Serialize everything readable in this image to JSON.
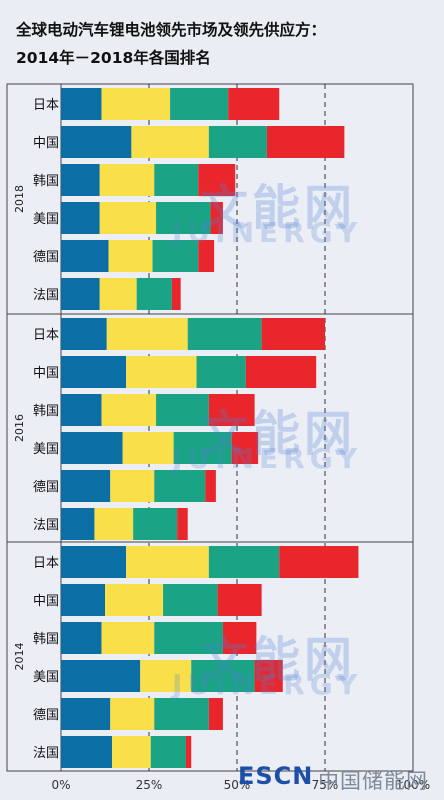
{
  "title_line1": "全球电动汽车锂电池领先市场及领先供应方：",
  "title_line2": "2014年－2018年各国排名",
  "watermark": {
    "text_cn": "文能网",
    "text_en": "JUINERGY"
  },
  "logo": {
    "esc": "ESCN",
    "cn": "中国储能网"
  },
  "colors": {
    "seg1": "#0b6fa6",
    "seg2": "#f9e04b",
    "seg3": "#1aa385",
    "seg4": "#e8262b"
  },
  "chart_data": {
    "type": "bar",
    "orientation": "horizontal",
    "stacked": true,
    "xlim": [
      0,
      100
    ],
    "x_ticks": [
      "0%",
      "25%",
      "50%",
      "75%",
      "100%"
    ],
    "groups": [
      {
        "label": "2018",
        "bars": [
          {
            "category": "日本",
            "values": [
              11.5,
              19.5,
              16.5,
              14.5
            ]
          },
          {
            "category": "中国",
            "values": [
              20,
              22,
              16.5,
              22
            ]
          },
          {
            "category": "韩国",
            "values": [
              11,
              15.5,
              12.5,
              10.5
            ]
          },
          {
            "category": "美国",
            "values": [
              11,
              16,
              15.5,
              3.5
            ]
          },
          {
            "category": "德国",
            "values": [
              13.5,
              12.5,
              13,
              4.5
            ]
          },
          {
            "category": "法国",
            "values": [
              11,
              10.5,
              10,
              2.5
            ]
          }
        ]
      },
      {
        "label": "2016",
        "bars": [
          {
            "category": "日本",
            "values": [
              13,
              23,
              21,
              18
            ]
          },
          {
            "category": "中国",
            "values": [
              18.5,
              20,
              14,
              20
            ]
          },
          {
            "category": "韩国",
            "values": [
              11.5,
              15.5,
              15,
              13
            ]
          },
          {
            "category": "美国",
            "values": [
              17.5,
              14.5,
              16.5,
              7.5
            ]
          },
          {
            "category": "德国",
            "values": [
              14,
              12.5,
              14.5,
              3
            ]
          },
          {
            "category": "法国",
            "values": [
              9.5,
              11,
              12.5,
              3
            ]
          }
        ]
      },
      {
        "label": "2014",
        "bars": [
          {
            "category": "日本",
            "values": [
              18.5,
              23.5,
              20,
              22.5
            ]
          },
          {
            "category": "中国",
            "values": [
              12.5,
              16.5,
              15.5,
              12.5
            ]
          },
          {
            "category": "韩国",
            "values": [
              11.5,
              15,
              19.5,
              9.5
            ]
          },
          {
            "category": "美国",
            "values": [
              22.5,
              14.5,
              18,
              8
            ]
          },
          {
            "category": "德国",
            "values": [
              14,
              12.5,
              15.5,
              4
            ]
          },
          {
            "category": "法国",
            "values": [
              14.5,
              11,
              10,
              1.5
            ]
          }
        ]
      }
    ]
  }
}
